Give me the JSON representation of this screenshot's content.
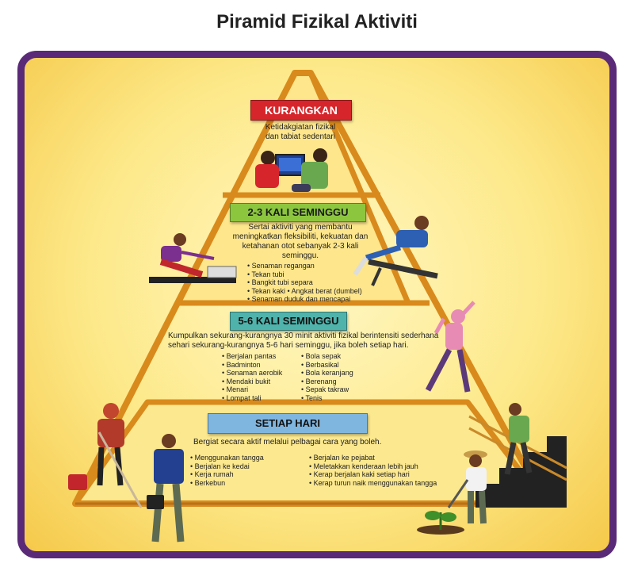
{
  "title": "Piramid Fizikal Aktiviti",
  "tiers": {
    "top": {
      "label": "KURANGKAN",
      "desc": "Ketidakgiatan fizikal dan tabiat sedentari"
    },
    "second": {
      "label": "2-3 KALI SEMINGGU",
      "desc": "Sertai aktiviti yang membantu meningkatkan fleksibiliti, kekuatan dan ketahanan otot sebanyak 2-3 kali seminggu.",
      "items": [
        "Senaman regangan",
        "Tekan tubi",
        "Bangkit tubi separa",
        "Tekan kaki  • Angkat berat (dumbel)",
        "Senaman duduk dan mencapai"
      ]
    },
    "third": {
      "label": "5-6 KALI SEMINGGU",
      "desc": "Kumpulkan sekurang-kurangnya 30 minit aktiviti fizikal berintensiti sederhana sehari sekurang-kurangnya 5-6 hari seminggu, jika boleh setiap hari.",
      "items_left": [
        "Berjalan pantas",
        "Badminton",
        "Senaman aerobik",
        "Mendaki bukit",
        "Menari",
        "Lompat tali"
      ],
      "items_right": [
        "Bola sepak",
        "Berbasikal",
        "Bola keranjang",
        "Berenang",
        "Sepak takraw",
        "Tenis"
      ]
    },
    "base": {
      "label": "SETIAP HARI",
      "desc": "Bergiat secara aktif melalui pelbagai cara yang boleh.",
      "items_left": [
        "Menggunakan tangga",
        "Berjalan ke kedai",
        "Kerja rumah",
        "Berkebun"
      ],
      "items_right": [
        "Berjalan ke pejabat",
        "Meletakkan kenderaan lebih jauh",
        "Kerap berjalan kaki setiap hari",
        "Kerap turun naik menggunakan tangga"
      ]
    }
  },
  "colors": {
    "frame": "#5a2a78",
    "pyramid_outline": "#d98a1c",
    "top_label": "#d6262b",
    "second_label": "#8cc63f",
    "third_label": "#4fb3ac",
    "base_label": "#7fb6e0"
  }
}
